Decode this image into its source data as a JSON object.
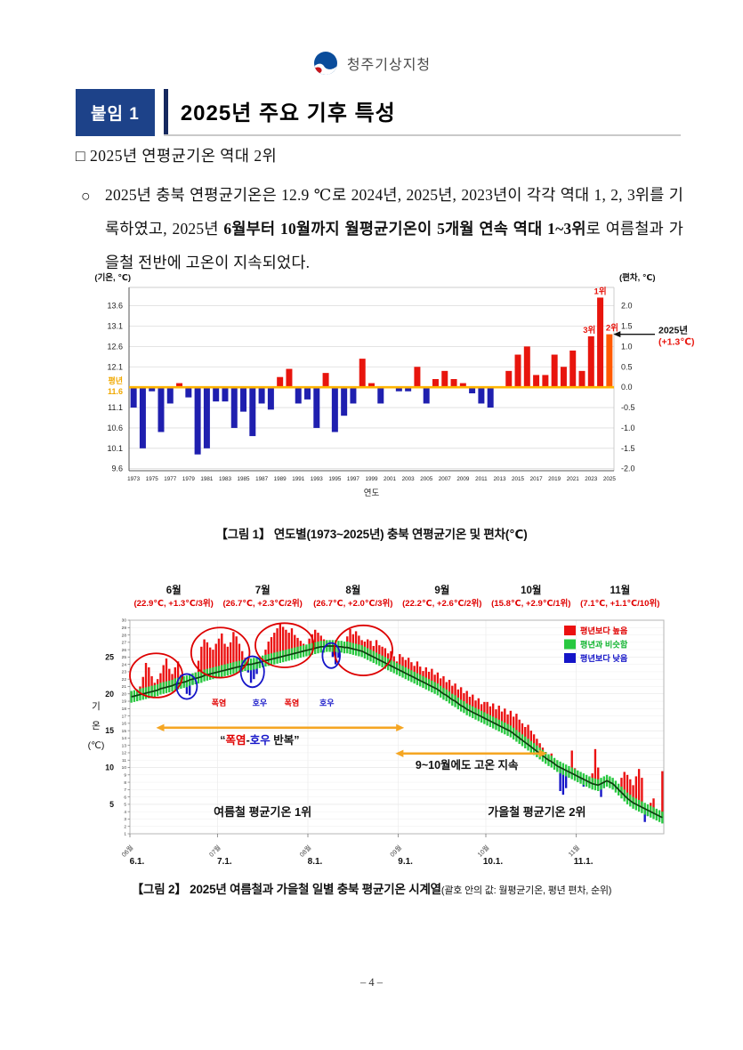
{
  "page": {
    "footer": "– 4 –"
  },
  "header": {
    "agency": "청주기상지청",
    "badge": "붙임 1",
    "title": "2025년 주요 기후 특성"
  },
  "section": {
    "heading": "□ 2025년 연평균기온 역대 2위",
    "bullet": "○",
    "para": {
      "s1": "2025년 충북 연평균기온은 12.9 ℃로 2024년, 2025년, 2023년이 각각 역대 1, 2, 3위를 기록하였고, 2025년 ",
      "s2": "6월부터 10월까지 월평균기온이 5개월 연속 역대 1~3위",
      "s3": "로 여름철과 가을철 전반에 고온이 지속되었다."
    }
  },
  "fig1": {
    "caption": "【그림 1】 연도별(1973~2025년) 충북 연평균기온 및 편차(℃)"
  },
  "fig2": {
    "caption_main": "【그림 2】 2025년 여름철과 가을철 일별 충북 평균기온 시계열",
    "caption_sub": "(괄호 안의 값: 월평균기온, 평년 편차, 순위)"
  },
  "chart_data": [
    {
      "type": "bar",
      "title": "연도별(1973~2025년) 충북 연평균기온 및 편차",
      "axis_left_title": "(기온, ℃)",
      "axis_right_title": "(편차, ℃)",
      "xlabel": "연도",
      "normal_label": [
        "평년",
        "11.6"
      ],
      "normal_value_c": 11.6,
      "value_2025_c": 12.9,
      "year_start": 1973,
      "anomalies": [
        -0.5,
        -1.5,
        -0.1,
        -1.1,
        -0.4,
        0.1,
        -0.25,
        -1.65,
        -1.5,
        -0.35,
        -0.35,
        -1.0,
        -0.6,
        -1.2,
        -0.4,
        -0.55,
        0.25,
        0.45,
        -0.4,
        -0.3,
        -1.0,
        0.35,
        -1.1,
        -0.7,
        -0.4,
        0.7,
        0.1,
        -0.4,
        0.0,
        -0.1,
        -0.1,
        0.5,
        -0.4,
        0.2,
        0.4,
        0.2,
        0.1,
        -0.15,
        -0.4,
        -0.5,
        0.0,
        0.4,
        0.8,
        1.0,
        0.3,
        0.3,
        0.8,
        0.5,
        0.9,
        0.4,
        1.25,
        2.2,
        1.3
      ],
      "left_ticks": [
        13.6,
        13.1,
        12.6,
        12.1,
        11.1,
        10.6,
        10.1,
        9.6
      ],
      "right_ticks": [
        2.0,
        1.5,
        1.0,
        0.5,
        0.0,
        -0.5,
        -1.0,
        -1.5,
        -2.0
      ],
      "rank_labels": [
        {
          "year": 2023,
          "label": "3위"
        },
        {
          "year": 2024,
          "label": "1위"
        },
        {
          "year": 2025,
          "label": "2위"
        }
      ],
      "annotation": {
        "line1": "2025년",
        "line2": "(+1.3℃)"
      },
      "colors": {
        "positive": "#E8150D",
        "negative": "#1F1FAF",
        "y2025": "#FF5A00",
        "normal_line": "#FFB400",
        "normal_text": "#F0A800"
      }
    },
    {
      "type": "bar",
      "subtype": "daily-temperature-with-normal-line",
      "ylabel_chars": [
        "기",
        "온",
        "(℃)"
      ],
      "ylim": [
        1,
        30
      ],
      "bold_yticks": [
        5,
        10,
        15,
        20,
        25
      ],
      "months": [
        {
          "name": "6월",
          "stats": "(22.9℃, +1.3℃/3위)",
          "tick": "06월",
          "date_label": "6.1.",
          "days": 30
        },
        {
          "name": "7월",
          "stats": "(26.7℃, +2.3℃/2위)",
          "tick": "07월",
          "date_label": "7.1.",
          "days": 31
        },
        {
          "name": "8월",
          "stats": "(26.7℃, +2.0℃/3위)",
          "tick": "08월",
          "date_label": "8.1.",
          "days": 31
        },
        {
          "name": "9월",
          "stats": "(22.2℃, +2.6℃/2위)",
          "tick": "09월",
          "date_label": "9.1.",
          "days": 30
        },
        {
          "name": "10월",
          "stats": "(15.8℃, +2.9℃/1위)",
          "tick": "10월",
          "date_label": "10.1.",
          "days": 31
        },
        {
          "name": "11월",
          "stats": "(7.1℃, +1.1℃/10위)",
          "tick": "11월",
          "date_label": "11.1.",
          "days": 30
        }
      ],
      "legend": [
        {
          "label": "평년보다 높음",
          "color": "#EB1010",
          "text_color": "#E00000"
        },
        {
          "label": "평년과 비슷함",
          "color": "#28C840",
          "text_color": "#12B530"
        },
        {
          "label": "평년보다 낮음",
          "color": "#1515C8",
          "text_color": "#1515C8"
        }
      ],
      "band_halfwidth": 0.8,
      "line_color": "#0E3D10",
      "normal": [
        19.6,
        19.7,
        19.8,
        19.9,
        20.0,
        20.1,
        20.2,
        20.3,
        20.4,
        20.5,
        20.7,
        20.8,
        20.9,
        21.0,
        21.1,
        21.3,
        21.4,
        21.5,
        21.6,
        21.7,
        21.9,
        22.0,
        22.1,
        22.2,
        22.3,
        22.5,
        22.6,
        22.7,
        22.8,
        22.9,
        23.0,
        23.1,
        23.2,
        23.3,
        23.4,
        23.5,
        23.6,
        23.7,
        23.8,
        23.9,
        24.0,
        24.0,
        24.1,
        24.2,
        24.3,
        24.4,
        24.5,
        24.6,
        24.7,
        24.8,
        24.9,
        25.0,
        25.1,
        25.2,
        25.3,
        25.4,
        25.5,
        25.6,
        25.7,
        25.8,
        25.9,
        26.0,
        26.1,
        26.2,
        26.3,
        26.4,
        26.4,
        26.5,
        26.5,
        26.5,
        26.5,
        26.4,
        26.4,
        26.3,
        26.3,
        26.2,
        26.1,
        26.0,
        25.9,
        25.8,
        25.6,
        25.4,
        25.2,
        25.0,
        24.8,
        24.6,
        24.4,
        24.2,
        24.0,
        23.8,
        23.6,
        23.4,
        23.2,
        23.0,
        22.8,
        22.6,
        22.4,
        22.2,
        22.0,
        21.8,
        21.6,
        21.4,
        21.2,
        21.0,
        20.8,
        20.6,
        20.3,
        20.0,
        19.8,
        19.5,
        19.2,
        19.0,
        18.7,
        18.4,
        18.2,
        17.9,
        17.7,
        17.5,
        17.3,
        17.1,
        16.9,
        16.7,
        16.5,
        16.3,
        16.1,
        15.9,
        15.7,
        15.5,
        15.3,
        15.1,
        14.9,
        14.6,
        14.3,
        14.0,
        13.7,
        13.4,
        13.1,
        12.8,
        12.5,
        12.2,
        11.9,
        11.6,
        11.3,
        11.0,
        10.8,
        10.5,
        10.2,
        10.0,
        9.8,
        9.6,
        9.4,
        9.2,
        9.0,
        8.8,
        8.6,
        8.4,
        8.2,
        8.0,
        7.8,
        7.7,
        7.6,
        7.8,
        8.0,
        8.2,
        8.0,
        7.8,
        7.4,
        7.0,
        6.6,
        6.2,
        5.8,
        5.5,
        5.2,
        5.0,
        4.8,
        4.6,
        4.4,
        4.2,
        4.0,
        3.8,
        3.6,
        3.4,
        3.2
      ],
      "temp": [
        20.3,
        19.4,
        20.2,
        21.0,
        22.3,
        24.2,
        23.6,
        22.4,
        21.5,
        22.0,
        22.8,
        23.9,
        24.8,
        23.4,
        22.7,
        23.6,
        24.4,
        22.6,
        21.0,
        20.0,
        19.8,
        21.3,
        22.9,
        24.5,
        26.4,
        27.4,
        27.0,
        26.3,
        26.0,
        26.8,
        27.5,
        28.2,
        26.8,
        26.4,
        27.0,
        28.4,
        27.8,
        26.8,
        25.8,
        24.9,
        22.9,
        21.5,
        22.0,
        22.7,
        23.8,
        24.9,
        26.0,
        27.1,
        27.7,
        28.3,
        28.9,
        29.5,
        29.1,
        28.7,
        28.3,
        28.9,
        28.0,
        27.6,
        27.2,
        26.8,
        26.4,
        27.5,
        28.1,
        28.7,
        28.3,
        27.9,
        27.4,
        27.0,
        26.0,
        25.0,
        24.0,
        24.9,
        25.9,
        26.8,
        27.8,
        28.8,
        28.1,
        28.5,
        27.9,
        27.3,
        27.1,
        27.4,
        27.2,
        26.5,
        27.3,
        26.6,
        26.4,
        26.2,
        25.5,
        25.8,
        25.1,
        24.4,
        25.4,
        25.0,
        24.6,
        24.9,
        24.3,
        23.8,
        24.4,
        23.7,
        23.1,
        23.6,
        23.0,
        23.4,
        22.6,
        22.9,
        22.1,
        22.4,
        21.6,
        21.9,
        21.1,
        21.4,
        20.6,
        20.9,
        20.1,
        20.4,
        19.6,
        19.9,
        19.1,
        19.4,
        18.6,
        18.9,
        18.9,
        18.3,
        18.7,
        17.9,
        18.4,
        17.6,
        18.0,
        17.2,
        17.7,
        16.9,
        17.3,
        16.5,
        16.0,
        15.5,
        15.8,
        15.0,
        14.5,
        13.9,
        13.3,
        12.7,
        12.1,
        11.5,
        11.9,
        11.1,
        10.4,
        6.8,
        6.3,
        7.2,
        9.8,
        12.3,
        9.9,
        9.0,
        8.2,
        7.4,
        7.8,
        8.6,
        9.2,
        12.5,
        10.0,
        6.0,
        7.2,
        8.6,
        8.4,
        7.8,
        7.2,
        6.6,
        8.6,
        9.4,
        9.0,
        8.4,
        7.6,
        8.8,
        9.8,
        8.6,
        2.6,
        3.4,
        5.2,
        5.8,
        4.2,
        3.0,
        9.5
      ],
      "ellipses_red": [
        {
          "cx_day": 9,
          "cy_temp": 22.5,
          "rx_days": 9,
          "ry_temp": 3.0
        },
        {
          "cx_day": 31,
          "cy_temp": 25.6,
          "rx_days": 10,
          "ry_temp": 3.4
        },
        {
          "cx_day": 53,
          "cy_temp": 26.6,
          "rx_days": 10,
          "ry_temp": 3.0
        },
        {
          "cx_day": 80,
          "cy_temp": 25.9,
          "rx_days": 10,
          "ry_temp": 3.4
        }
      ],
      "ellipses_blue": [
        {
          "cx_day": 19.5,
          "cy_temp": 21.0,
          "rx_days": 3.5,
          "ry_temp": 1.7
        },
        {
          "cx_day": 42,
          "cy_temp": 23.0,
          "rx_days": 4,
          "ry_temp": 2.1
        },
        {
          "cx_day": 69,
          "cy_temp": 25.2,
          "rx_days": 3,
          "ry_temp": 1.7
        }
      ],
      "event_labels": [
        {
          "text": "폭염",
          "color": "#E00000",
          "day": 30,
          "temp": 18.4
        },
        {
          "text": "호우",
          "color": "#1515C8",
          "day": 44,
          "temp": 18.4
        },
        {
          "text": "폭염",
          "color": "#E00000",
          "day": 55,
          "temp": 18.4
        },
        {
          "text": "호우",
          "color": "#1515C8",
          "day": 67,
          "temp": 18.4
        }
      ],
      "arrows": [
        {
          "from_day": 9,
          "to_day": 94,
          "temp": 15.4
        },
        {
          "from_day": 91,
          "to_day": 143,
          "temp": 11.9
        }
      ],
      "arrow_color": "#F5A623",
      "arrow1_text_parts": [
        {
          "t": "“",
          "c": "#111111"
        },
        {
          "t": "폭염",
          "c": "#E00000"
        },
        {
          "t": "-",
          "c": "#111111"
        },
        {
          "t": "호우",
          "c": "#1515C8"
        },
        {
          "t": " 반복",
          "c": "#111111"
        },
        {
          "t": "”",
          "c": "#111111"
        }
      ],
      "arrow1_text_pos": {
        "day": 44,
        "temp": 13.2
      },
      "arrow2_text": "9~10월에도 고온 지속",
      "arrow2_text_pos": {
        "day": 115,
        "temp": 9.8
      },
      "season_labels": [
        {
          "text": "여름철 평균기온 1위",
          "day": 45,
          "temp": 3.4
        },
        {
          "text": "가을철 평균기온 2위",
          "day": 139,
          "temp": 3.4
        }
      ]
    }
  ]
}
